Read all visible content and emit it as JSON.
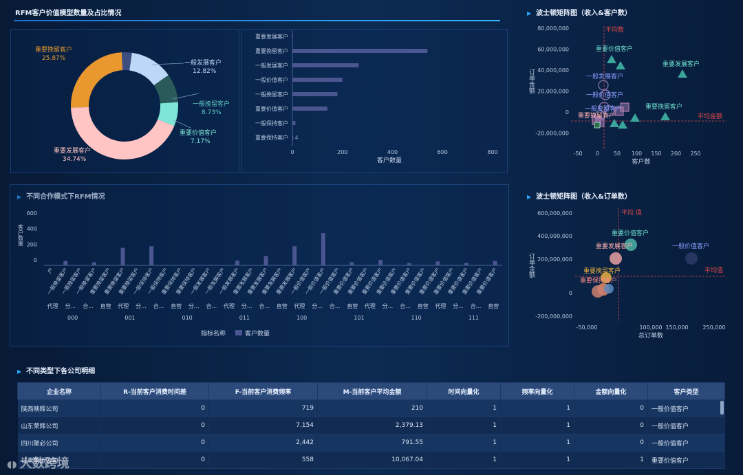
{
  "sections": {
    "rfm_title": "RFM客户价值模型数量及占比情况",
    "coop_title": "不同合作模式下RFM情况",
    "company_title": "不同类型下各公司明细",
    "bcg1_title": "波士顿矩阵图（收入&客户数）",
    "bcg2_title": "波士顿矩阵图（收入&订单数）"
  },
  "donut": {
    "labels": [
      {
        "name": "重要挽留客户",
        "pct": "25.87%"
      },
      {
        "name": "一般发展客户",
        "pct": "12.82%"
      },
      {
        "name": "一般挽留客户",
        "pct": "8.73%"
      },
      {
        "name": "重要价值客户",
        "pct": "7.17%"
      },
      {
        "name": "重要发展客户",
        "pct": "34.74%"
      }
    ],
    "colors": {
      "a": "#e8982f",
      "b": "#bcd7f7",
      "c": "#2b5a5a",
      "d": "#7de6d8",
      "e": "#ffc4c4",
      "f": "#3d4f80"
    }
  },
  "hbar": {
    "categories": [
      "重要发展客户",
      "重要挽留客户",
      "一般发展客户",
      "一般价值客户",
      "一般挽留客户",
      "重要价值客户",
      "一般保持客户",
      "重要保持客户"
    ],
    "values": [
      2,
      540,
      265,
      200,
      180,
      140,
      12,
      4
    ],
    "xticks": [
      "0",
      "200",
      "400",
      "600",
      "800"
    ],
    "xmax": 800,
    "xlabel": "客户数量",
    "last_value_label": "4"
  },
  "coop": {
    "yticks": [
      "0",
      "200",
      "400",
      "600"
    ],
    "ylabel": "客户数量",
    "categories": [
      "户",
      "一般挽留客户",
      "一般挽留客户",
      "一般挽留客户",
      "重要挽留客户",
      "重要挽留客户",
      "重要挽留客户",
      "一般保持客户",
      "一般保持客户",
      "重要保持客户",
      "重要保持客户",
      "一般发展客户",
      "一般发展客户",
      "一般发展客户",
      "重要发展客户",
      "重要发展客户",
      "重要发展客户",
      "重要发展客户",
      "一般价值客户",
      "一般价值客户",
      "一般价值客户",
      "重要价值客户",
      "重要价值客户",
      "重要价值客户",
      "重要价值客户",
      "重要价值客户",
      "重要价值客户",
      "重要价值客户",
      "重要价值客户",
      "重要价值客户",
      "重要价值客户",
      "重要价值客户"
    ],
    "values": [
      5,
      55,
      5,
      40,
      5,
      225,
      5,
      245,
      2,
      2,
      2,
      2,
      2,
      60,
      2,
      120,
      5,
      245,
      5,
      415,
      5,
      40,
      5,
      70,
      5,
      30,
      5,
      50,
      5,
      30,
      5,
      55
    ],
    "modes": [
      "代理",
      "分...",
      "合...",
      "直营",
      "代理",
      "分...",
      "合...",
      "直营",
      "分...",
      "合...",
      "代理",
      "分...",
      "合...",
      "直营",
      "代理",
      "分...",
      "合...",
      "直营",
      "代理",
      "分...",
      "合...",
      "直营",
      "代理",
      "分...",
      "合...",
      "直营"
    ],
    "groups": [
      "000",
      "001",
      "010",
      "011",
      "100",
      "101",
      "110",
      "111"
    ],
    "legend_axis": "指标名称",
    "legend_series": "客户数量"
  },
  "bcg1": {
    "yticks": [
      "80,000,000",
      "60,000,000",
      "40,000,000",
      "20,000,000",
      "0",
      "-20,000,000"
    ],
    "xticks": [
      "-50",
      "0",
      "50",
      "100",
      "150",
      "200",
      "250"
    ],
    "ylabel": "订单金额",
    "xlabel": "客户数",
    "avg_top": "平均数",
    "avg_right": "平均金额",
    "labels": [
      "重要价值客户",
      "重要发展客户",
      "一般发展客户",
      "一般价值客户",
      "重要挽留客户",
      "一般挽留客户",
      "重要挽留客户"
    ]
  },
  "bcg2": {
    "yticks": [
      "600,000,000",
      "400,000,000",
      "200,000,000",
      "0",
      "-200,000,000"
    ],
    "xticks": [
      "-50,000",
      "100,000",
      "150,000",
      "250,000"
    ],
    "ylabel": "订单金额",
    "xlabel": "总订单数",
    "avg_top": "平均 值",
    "avg_right": "平均值",
    "labels": [
      "重要价值客户",
      "重要发展客户",
      "一般价值客户",
      "重要挽留客户",
      "重要保持客户"
    ]
  },
  "table": {
    "headers": [
      "企业名称",
      "R-当前客户消费时间差",
      "F-当前客户消费频率",
      "M-当前客户平均金额",
      "时间向量化",
      "频率向量化",
      "金额向量化",
      "客户类型"
    ],
    "rows": [
      [
        "陕西映辉公司",
        "0",
        "719",
        "210",
        "1",
        "1",
        "0",
        "一般价值客户"
      ],
      [
        "山东荣辉公司",
        "0",
        "7,154",
        "2,379.13",
        "1",
        "1",
        "0",
        "一般价值客户"
      ],
      [
        "四川聚必公司",
        "0",
        "2,442",
        "791.55",
        "1",
        "1",
        "0",
        "一般价值客户"
      ],
      [
        "甘肃华迈公司",
        "0",
        "558",
        "10,067.04",
        "1",
        "1",
        "1",
        "重要价值客户"
      ]
    ]
  },
  "watermark": "大数跨境"
}
